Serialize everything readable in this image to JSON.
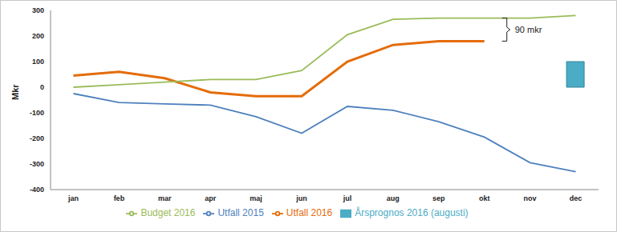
{
  "chart_data": {
    "type": "line",
    "y_label": "Mkr",
    "categories": [
      "jan",
      "feb",
      "mar",
      "apr",
      "maj",
      "jun",
      "jul",
      "aug",
      "sep",
      "okt",
      "nov",
      "dec"
    ],
    "series": [
      {
        "name": "Årsprognos 2016 (augusti)",
        "type": "bar",
        "color": "#4bacc6",
        "values": [
          null,
          null,
          null,
          null,
          null,
          null,
          null,
          null,
          null,
          null,
          null,
          100
        ]
      },
      {
        "name": "Utfall 2016",
        "type": "line",
        "color": "#e46c0a",
        "values": [
          45,
          60,
          35,
          -20,
          -35,
          -35,
          100,
          165,
          180,
          180,
          null,
          null
        ]
      },
      {
        "name": "Utfall 2015",
        "type": "line",
        "color": "#4f81bd",
        "values": [
          -25,
          -60,
          -65,
          -70,
          -115,
          -180,
          -75,
          -90,
          -135,
          -195,
          -295,
          -330
        ]
      },
      {
        "name": "Budget 2016",
        "type": "line",
        "color": "#9bbb59",
        "values": [
          0,
          10,
          20,
          30,
          30,
          65,
          205,
          265,
          270,
          270,
          270,
          280
        ]
      }
    ],
    "ylim": [
      -400,
      300
    ],
    "yticks": [
      -400,
      -300,
      -200,
      -100,
      0,
      100,
      200,
      300
    ],
    "grid": false,
    "legend": "bottom",
    "annotations": [
      {
        "text": "90 mkr"
      }
    ]
  }
}
